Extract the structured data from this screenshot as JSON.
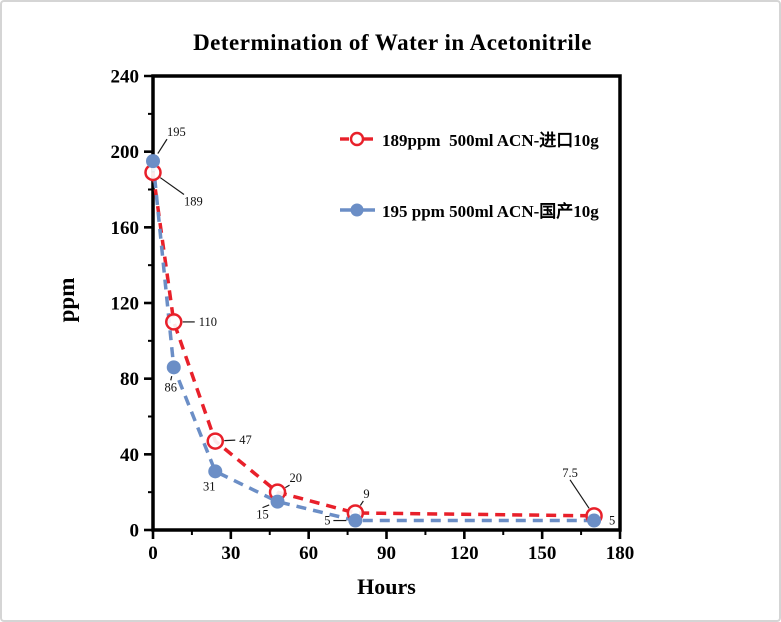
{
  "panel": {
    "background_color": "#ffffff",
    "border_color": "#d5d5d5"
  },
  "chart_data": {
    "type": "line",
    "title": "Determination of Water in Acetonitrile",
    "xlabel": "Hours",
    "ylabel": "ppm",
    "xlim": [
      0,
      180
    ],
    "ylim": [
      0,
      240
    ],
    "x_major_ticks": [
      0,
      30,
      60,
      90,
      120,
      150,
      180
    ],
    "x_minor_ticks": [
      15,
      45,
      75,
      105,
      135,
      165
    ],
    "y_major_ticks": [
      0,
      40,
      80,
      120,
      160,
      200,
      240
    ],
    "y_minor_ticks": [
      20,
      60,
      100,
      140,
      180,
      220
    ],
    "grid": false,
    "legend_position": "inside-upper-right",
    "series": [
      {
        "name": "189ppm  500ml ACN-进口10g",
        "color": "#e8202a",
        "marker": "open-circle",
        "line_style": "dashed",
        "x": [
          0,
          8,
          24,
          48,
          78,
          170
        ],
        "y": [
          189,
          110,
          47,
          20,
          9,
          7.5
        ],
        "point_labels": [
          "189",
          "110",
          "47",
          "20",
          "9",
          "7.5"
        ],
        "label_offsets": [
          [
            31,
            33
          ],
          [
            25,
            4
          ],
          [
            24,
            3
          ],
          [
            12,
            -10
          ],
          [
            8,
            -15
          ],
          [
            -24,
            -39
          ]
        ],
        "label_anchors": [
          "start",
          "start",
          "start",
          "start",
          "start",
          "middle"
        ]
      },
      {
        "name": "195 ppm 500ml ACN-国产10g",
        "color": "#6b8ec6",
        "marker": "filled-circle",
        "line_style": "dashed",
        "x": [
          0,
          8,
          24,
          48,
          78,
          170
        ],
        "y": [
          195,
          86,
          31,
          15,
          5,
          5
        ],
        "point_labels": [
          "195",
          "86",
          "31",
          "15",
          "5",
          "5"
        ],
        "label_offsets": [
          [
            14,
            -25
          ],
          [
            -3,
            24
          ],
          [
            -6,
            19
          ],
          [
            -15,
            17
          ],
          [
            -28,
            4
          ],
          [
            15,
            4
          ]
        ],
        "label_anchors": [
          "start",
          "middle",
          "middle",
          "middle",
          "middle",
          "start"
        ]
      }
    ]
  }
}
